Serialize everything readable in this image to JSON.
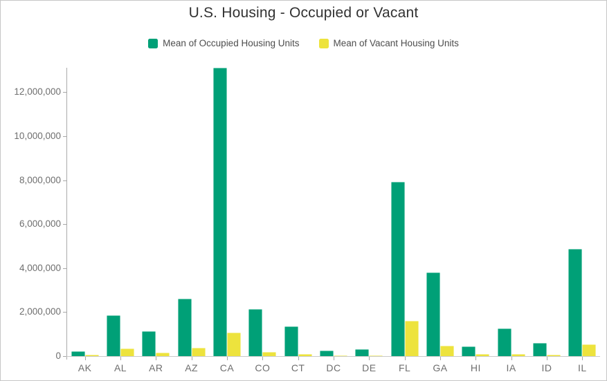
{
  "chart_data": {
    "type": "bar",
    "title": "U.S. Housing - Occupied or Vacant",
    "categories": [
      "AK",
      "AL",
      "AR",
      "AZ",
      "CA",
      "CO",
      "CT",
      "DC",
      "DE",
      "FL",
      "GA",
      "HI",
      "IA",
      "ID",
      "IL"
    ],
    "series": [
      {
        "name": "Mean of Occupied Housing Units",
        "color": "#00a077",
        "values": [
          220000,
          1860000,
          1130000,
          2620000,
          13100000,
          2150000,
          1350000,
          250000,
          325000,
          7920000,
          3800000,
          440000,
          1260000,
          610000,
          4870000
        ]
      },
      {
        "name": "Mean of Vacant Housing Units",
        "color": "#ede33d",
        "values": [
          65000,
          360000,
          170000,
          380000,
          1080000,
          190000,
          110000,
          30000,
          42000,
          1600000,
          470000,
          80000,
          110000,
          70000,
          520000
        ]
      }
    ],
    "xlabel": "",
    "ylabel": "",
    "ylim": [
      0,
      13100000
    ],
    "y_ticks": [
      0,
      2000000,
      4000000,
      6000000,
      8000000,
      10000000,
      12000000
    ],
    "grid": false,
    "legend_position": "top"
  },
  "colors": {
    "occupied": "#00a077",
    "vacant": "#ede33d",
    "axis_line": "#a9a9a9",
    "baseline": "#c9c9c9",
    "tick": "#a6a6a6",
    "axis_label_text": "#6e6e6e",
    "legend_text": "#4c4c4c",
    "title_text": "#323232"
  }
}
